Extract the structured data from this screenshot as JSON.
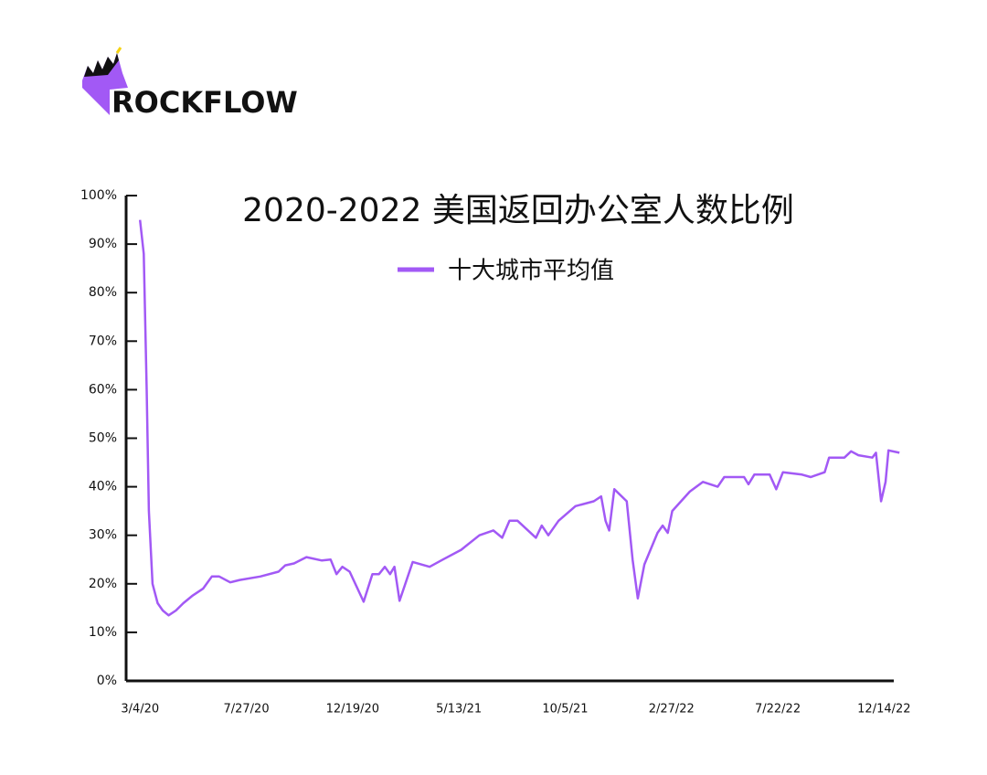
{
  "logo": "ROCKFLOW",
  "chart_data": {
    "type": "line",
    "title": "2020-2022 美国返回办公室人数比例",
    "x": [
      "3/4/20",
      "3/9/20",
      "3/13/20",
      "3/16/20",
      "3/21/20",
      "3/28/20",
      "4/4/20",
      "4/12/20",
      "4/22/20",
      "5/2/20",
      "5/14/20",
      "5/29/20",
      "6/10/20",
      "6/20/20",
      "7/5/20",
      "7/18/20",
      "8/15/20",
      "9/9/20",
      "9/18/20",
      "9/30/20",
      "10/17/20",
      "11/7/20",
      "11/19/20",
      "11/27/20",
      "12/5/20",
      "12/15/20",
      "1/3/21",
      "1/15/21",
      "1/24/21",
      "2/1/21",
      "2/8/21",
      "2/14/21",
      "2/21/21",
      "3/11/21",
      "4/3/21",
      "4/21/21",
      "5/16/21",
      "6/10/21",
      "6/29/21",
      "7/11/21",
      "7/21/21",
      "8/1/21",
      "8/26/21",
      "9/3/21",
      "9/12/21",
      "9/26/21",
      "10/19/21",
      "11/13/21",
      "11/23/21",
      "11/29/21",
      "12/4/21",
      "12/11/21",
      "12/28/21",
      "1/5/22",
      "1/12/22",
      "1/21/22",
      "2/8/22",
      "2/15/22",
      "2/22/22",
      "2/28/22",
      "3/24/22",
      "4/11/22",
      "5/1/22",
      "5/10/22",
      "6/6/22",
      "6/12/22",
      "6/20/22",
      "7/11/22",
      "7/20/22",
      "7/29/22",
      "8/24/22",
      "9/5/22",
      "9/24/22",
      "9/30/22",
      "10/21/22",
      "10/30/22",
      "11/9/22",
      "11/28/22",
      "12/3/22",
      "12/10/22",
      "12/16/22",
      "12/20/22",
      "1/4/23"
    ],
    "series": [
      {
        "name": "十大城市平均值",
        "color": "#a259f5",
        "values": [
          95,
          88,
          60,
          35,
          20,
          16,
          14.5,
          13.5,
          14.5,
          16,
          17.5,
          19,
          21.5,
          21.5,
          20.3,
          20.8,
          21.5,
          22.5,
          23.8,
          24.2,
          25.5,
          24.8,
          25,
          22,
          23.5,
          22.5,
          16.3,
          22,
          22,
          23.5,
          22,
          23.5,
          16.5,
          24.5,
          23.5,
          25,
          27,
          30,
          31,
          29.5,
          33,
          33,
          29.5,
          32,
          30,
          33,
          36,
          37,
          38,
          33,
          31,
          39.5,
          37,
          25,
          17,
          24,
          30.5,
          32,
          30.5,
          35,
          39,
          41,
          40,
          42,
          42,
          40.5,
          42.5,
          42.5,
          39.5,
          43,
          42.5,
          42,
          43,
          46,
          46,
          47.3,
          46.5,
          46,
          47,
          37,
          41,
          47.5,
          47
        ]
      }
    ],
    "xlim": [
      "2/14/20",
      "1/5/23"
    ],
    "xticks": [
      "3/4/20",
      "7/27/20",
      "12/19/20",
      "5/13/21",
      "10/5/21",
      "2/27/22",
      "7/22/22",
      "12/14/22"
    ],
    "ylim": [
      0,
      100
    ],
    "yticks": [
      {
        "value": 0,
        "label": "0%"
      },
      {
        "value": 10,
        "label": "10%"
      },
      {
        "value": 20,
        "label": "20%"
      },
      {
        "value": 30,
        "label": "30%"
      },
      {
        "value": 40,
        "label": "40%"
      },
      {
        "value": 50,
        "label": "50%"
      },
      {
        "value": 60,
        "label": "60%"
      },
      {
        "value": 70,
        "label": "70%"
      },
      {
        "value": 80,
        "label": "80%"
      },
      {
        "value": 90,
        "label": "90%"
      },
      {
        "value": 100,
        "label": "100%"
      }
    ]
  }
}
